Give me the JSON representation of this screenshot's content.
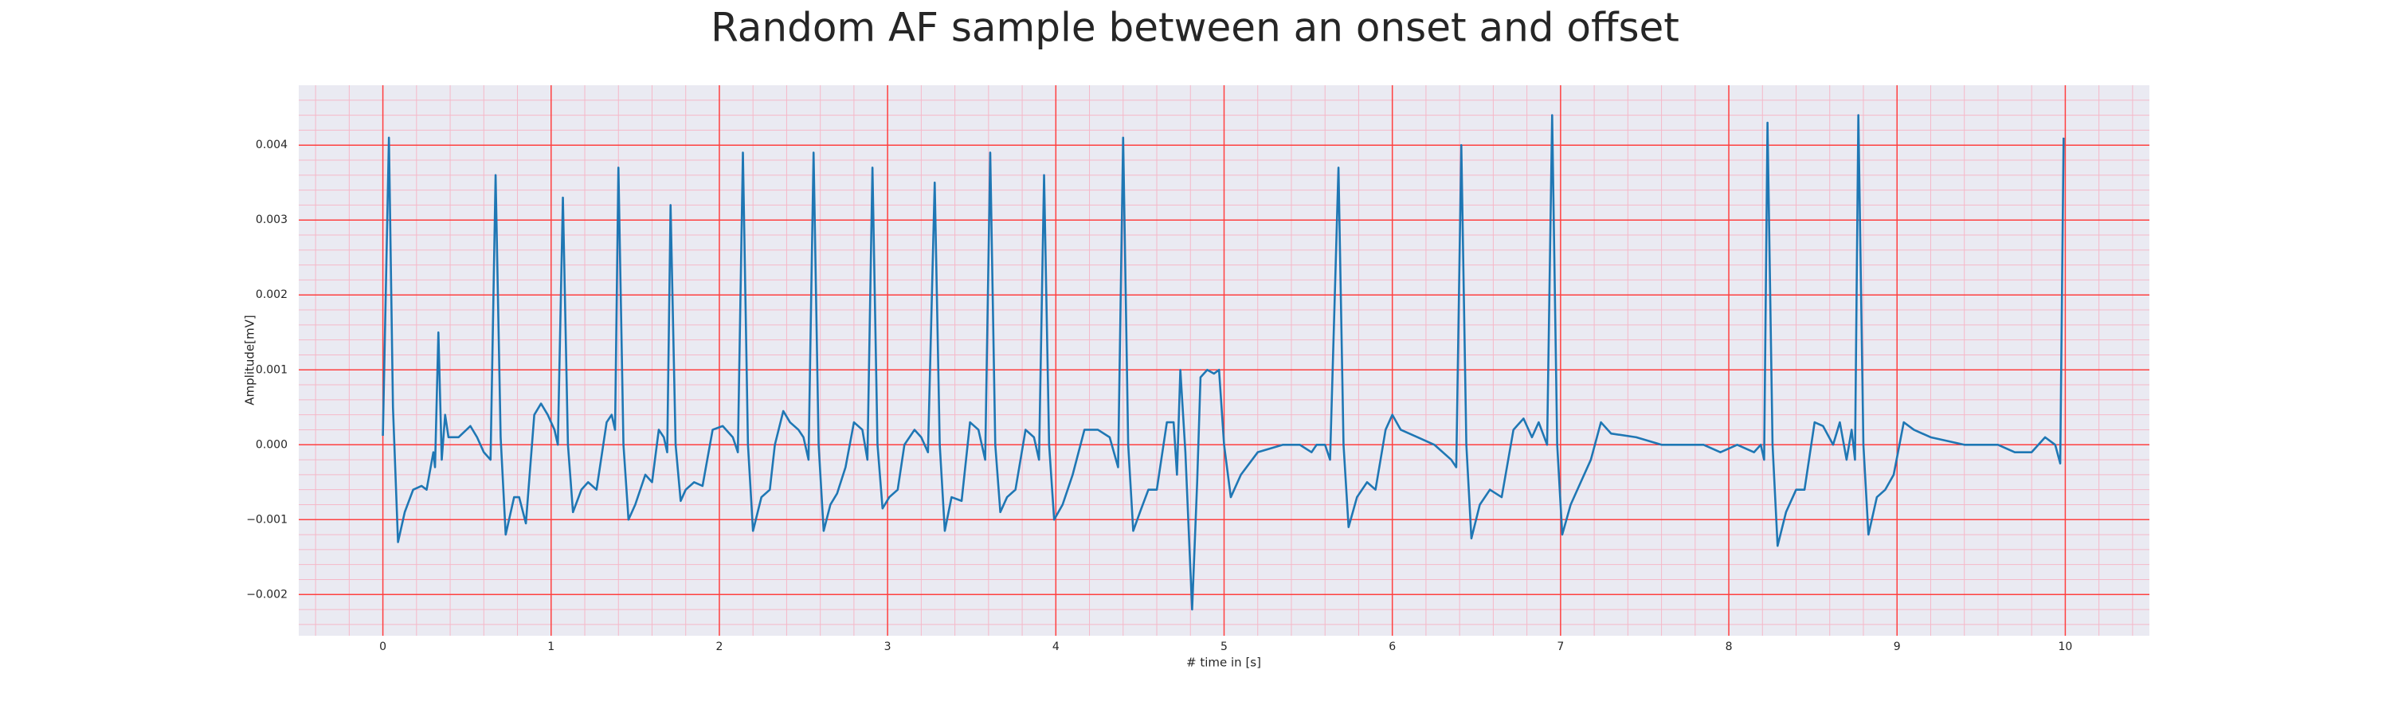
{
  "chart_data": {
    "type": "line",
    "title": "Random AF sample between an onset and offset",
    "x_label": "# time in [s]",
    "y_label": "Amplitude[mV]",
    "xlim": [
      -0.5,
      10.5
    ],
    "ylim": [
      -0.00255,
      0.0048
    ],
    "xticks": [
      0,
      1,
      2,
      3,
      4,
      5,
      6,
      7,
      8,
      9,
      10
    ],
    "yticks": [
      {
        "value": -0.002,
        "label": "−0.002"
      },
      {
        "value": -0.001,
        "label": "−0.001"
      },
      {
        "value": 0,
        "label": "0.000"
      },
      {
        "value": 0.001,
        "label": "0.001"
      },
      {
        "value": 0.002,
        "label": "0.002"
      },
      {
        "value": 0.003,
        "label": "0.003"
      },
      {
        "value": 0.004,
        "label": "0.004"
      }
    ],
    "grid": true,
    "grid_color": "#ff4040",
    "minor_grid": true,
    "minor_grid_color": "#f5b8c8",
    "minor_grid_divisions": 5,
    "background": "#eaeaf2",
    "x": [
      0,
      0.036,
      0.06,
      0.09,
      0.13,
      0.18,
      0.23,
      0.26,
      0.3,
      0.31,
      0.33,
      0.35,
      0.37,
      0.39,
      0.45,
      0.52,
      0.56,
      0.6,
      0.64,
      0.67,
      0.7,
      0.73,
      0.78,
      0.81,
      0.85,
      0.9,
      0.94,
      0.98,
      1.02,
      1.04,
      1.07,
      1.1,
      1.13,
      1.18,
      1.22,
      1.27,
      1.33,
      1.36,
      1.38,
      1.4,
      1.43,
      1.46,
      1.5,
      1.56,
      1.6,
      1.64,
      1.67,
      1.69,
      1.71,
      1.74,
      1.77,
      1.8,
      1.85,
      1.9,
      1.96,
      2.02,
      2.08,
      2.11,
      2.14,
      2.17,
      2.2,
      2.25,
      2.3,
      2.33,
      2.38,
      2.42,
      2.47,
      2.5,
      2.53,
      2.56,
      2.59,
      2.62,
      2.66,
      2.7,
      2.75,
      2.8,
      2.85,
      2.88,
      2.91,
      2.94,
      2.97,
      3.01,
      3.06,
      3.1,
      3.16,
      3.2,
      3.24,
      3.28,
      3.31,
      3.34,
      3.38,
      3.44,
      3.49,
      3.54,
      3.58,
      3.61,
      3.64,
      3.67,
      3.71,
      3.76,
      3.82,
      3.87,
      3.9,
      3.93,
      3.96,
      3.99,
      4.04,
      4.1,
      4.17,
      4.25,
      4.32,
      4.37,
      4.4,
      4.43,
      4.46,
      4.5,
      4.55,
      4.6,
      4.66,
      4.7,
      4.72,
      4.74,
      4.77,
      4.81,
      4.84,
      4.86,
      4.9,
      4.94,
      4.97,
      5,
      5.04,
      5.1,
      5.2,
      5.35,
      5.45,
      5.52,
      5.55,
      5.6,
      5.63,
      5.68,
      5.71,
      5.74,
      5.79,
      5.85,
      5.9,
      5.96,
      6,
      6.05,
      6.15,
      6.25,
      6.35,
      6.38,
      6.41,
      6.44,
      6.47,
      6.52,
      6.58,
      6.65,
      6.72,
      6.78,
      6.83,
      6.87,
      6.92,
      6.95,
      6.98,
      7.01,
      7.06,
      7.12,
      7.18,
      7.24,
      7.3,
      7.45,
      7.6,
      7.85,
      7.95,
      8.05,
      8.15,
      8.19,
      8.21,
      8.23,
      8.26,
      8.29,
      8.34,
      8.4,
      8.45,
      8.51,
      8.56,
      8.62,
      8.66,
      8.7,
      8.73,
      8.75,
      8.77,
      8.8,
      8.83,
      8.88,
      8.93,
      8.98,
      9.04,
      9.1,
      9.2,
      9.4,
      9.6,
      9.7,
      9.8,
      9.88,
      9.94,
      9.97,
      9.99
    ],
    "series": [
      {
        "color": "#1f77b4",
        "values": [
          0.00012,
          0.0041,
          0.0005,
          -0.0013,
          -0.0009,
          -0.0006,
          -0.00055,
          -0.0006,
          -0.0001,
          -0.0003,
          0.0015,
          -0.0002,
          0.0004,
          0.0001,
          0.0001,
          0.00025,
          0.0001,
          -0.0001,
          -0.0002,
          0.0036,
          0.0001,
          -0.0012,
          -0.0007,
          -0.0007,
          -0.00105,
          0.0004,
          0.00055,
          0.0004,
          0.0002,
          0,
          0.0033,
          0,
          -0.0009,
          -0.0006,
          -0.0005,
          -0.0006,
          0.0003,
          0.0004,
          0.0002,
          0.0037,
          0,
          -0.001,
          -0.0008,
          -0.0004,
          -0.0005,
          0.0002,
          0.0001,
          -0.0001,
          0.0032,
          0,
          -0.00075,
          -0.0006,
          -0.0005,
          -0.00055,
          0.0002,
          0.00025,
          0.0001,
          -0.0001,
          0.0039,
          0,
          -0.00115,
          -0.0007,
          -0.0006,
          0,
          0.00045,
          0.0003,
          0.0002,
          0.0001,
          -0.0002,
          0.0039,
          0,
          -0.00115,
          -0.0008,
          -0.00065,
          -0.0003,
          0.0003,
          0.0002,
          -0.0002,
          0.0037,
          0,
          -0.00085,
          -0.0007,
          -0.0006,
          0,
          0.0002,
          0.0001,
          -0.0001,
          0.0035,
          0,
          -0.00115,
          -0.0007,
          -0.00075,
          0.0003,
          0.0002,
          -0.0002,
          0.0039,
          0,
          -0.0009,
          -0.0007,
          -0.0006,
          0.0002,
          0.0001,
          -0.0002,
          0.0036,
          0,
          -0.001,
          -0.0008,
          -0.0004,
          0.0002,
          0.0002,
          0.0001,
          -0.0003,
          0.0041,
          0,
          -0.00115,
          -0.0009,
          -0.0006,
          -0.0006,
          0.0003,
          0.0003,
          -0.0004,
          0.001,
          -0.0001,
          -0.0022,
          -0.0005,
          0.0009,
          0.001,
          0.00095,
          0.001,
          0,
          -0.0007,
          -0.0004,
          -0.0001,
          0,
          0,
          -0.0001,
          0,
          0,
          -0.0002,
          0.0037,
          0,
          -0.0011,
          -0.0007,
          -0.0005,
          -0.0006,
          0.0002,
          0.0004,
          0.0002,
          0.0001,
          0,
          -0.0002,
          -0.0003,
          0.004,
          0,
          -0.00125,
          -0.0008,
          -0.0006,
          -0.0007,
          0.0002,
          0.00035,
          0.0001,
          0.0003,
          0,
          0.0044,
          0,
          -0.0012,
          -0.0008,
          -0.0005,
          -0.0002,
          0.0003,
          0.00015,
          0.0001,
          0,
          0,
          -0.0001,
          0,
          -0.0001,
          0,
          -0.0002,
          0.0043,
          0,
          -0.00135,
          -0.0009,
          -0.0006,
          -0.0006,
          0.0003,
          0.00025,
          0,
          0.0003,
          -0.0002,
          0.0002,
          -0.0002,
          0.0044,
          0,
          -0.0012,
          -0.0007,
          -0.0006,
          -0.0004,
          0.0003,
          0.0002,
          0.0001,
          0,
          0,
          -0.0001,
          -0.0001,
          0.0001,
          0,
          -0.00025,
          0.0041
        ]
      }
    ]
  }
}
